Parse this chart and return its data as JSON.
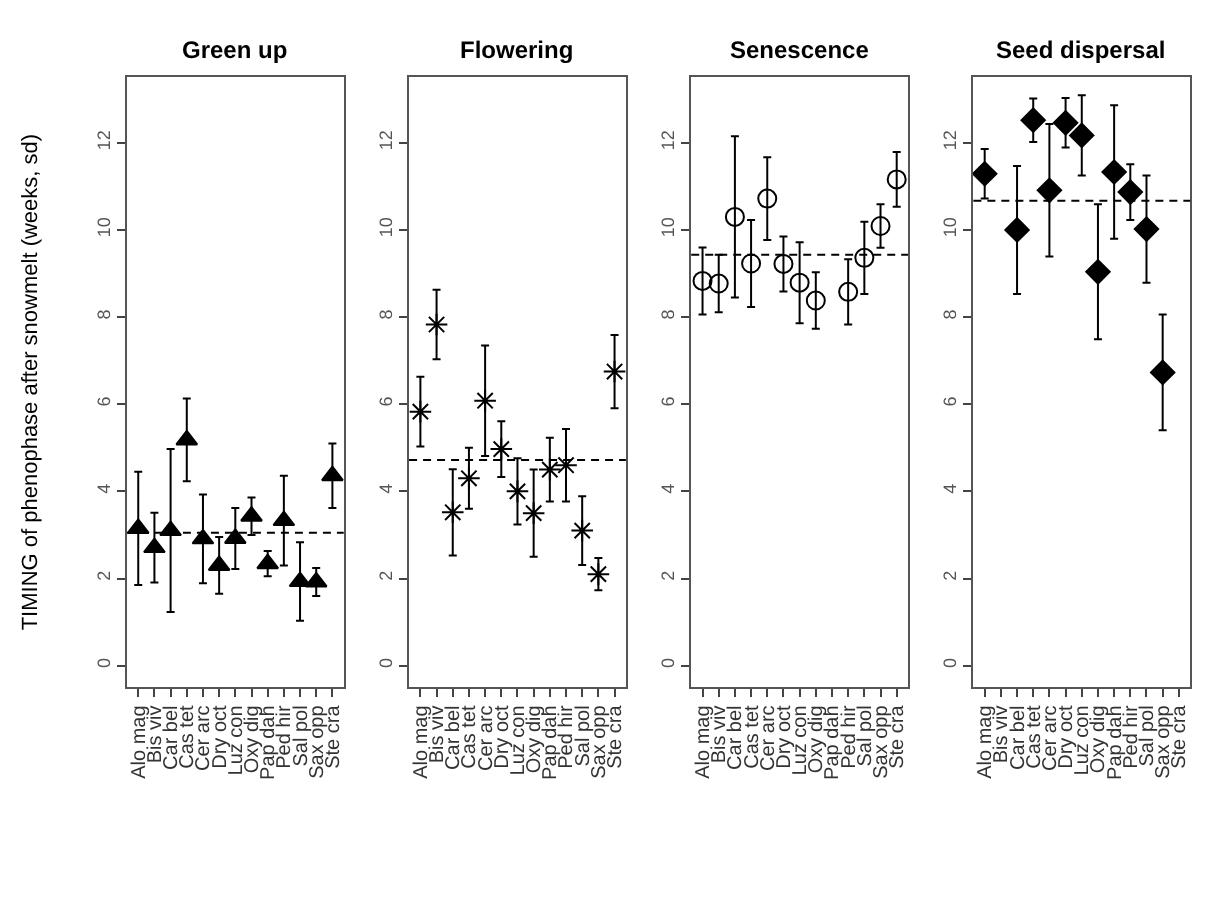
{
  "chart_data": [
    {
      "type": "scatter",
      "title": "Green up",
      "ylabel": "TIMING of phenophase after snowmelt (weeks, sd)",
      "categories": [
        "Alo mag",
        "Bis viv",
        "Car bel",
        "Cas tet",
        "Cer arc",
        "Dry oct",
        "Luz con",
        "Oxy dig",
        "Pap dah",
        "Ped hir",
        "Sal pol",
        "Sax opp",
        "Ste cra"
      ],
      "ylim": [
        -0.5,
        13.5
      ],
      "yticks": [
        0,
        2,
        4,
        6,
        8,
        10,
        12
      ],
      "marker": "triangle",
      "series": [
        {
          "color": "#000000",
          "values": [
            3.15,
            2.71,
            3.1,
            5.18,
            2.91,
            2.3,
            2.92,
            3.43,
            2.34,
            3.33,
            1.93,
            1.92,
            4.36
          ],
          "errors": [
            1.3,
            0.8,
            1.87,
            0.95,
            1.02,
            0.65,
            0.7,
            0.43,
            0.29,
            1.03,
            0.9,
            0.32,
            0.74
          ]
        }
      ],
      "ref_lines": [
        {
          "axis": "y",
          "value": 3.05,
          "line_style": "dashed"
        }
      ]
    },
    {
      "type": "scatter",
      "title": "Flowering",
      "categories": [
        "Alo mag",
        "Bis viv",
        "Car bel",
        "Cas tet",
        "Cer arc",
        "Dry oct",
        "Luz con",
        "Oxy dig",
        "Pap dah",
        "Ped hir",
        "Sal pol",
        "Sax opp",
        "Ste cra"
      ],
      "ylim": [
        -0.5,
        13.5
      ],
      "yticks": [
        0,
        2,
        4,
        6,
        8,
        10,
        12
      ],
      "marker": "cross",
      "series": [
        {
          "color": "#000000",
          "values": [
            5.83,
            7.83,
            3.52,
            4.3,
            6.08,
            4.97,
            4.0,
            3.5,
            4.5,
            4.6,
            3.1,
            2.1,
            6.75
          ],
          "errors": [
            0.8,
            0.8,
            0.99,
            0.7,
            1.27,
            0.64,
            0.76,
            1.0,
            0.73,
            0.83,
            0.79,
            0.37,
            0.84
          ]
        }
      ],
      "ref_lines": [
        {
          "axis": "y",
          "value": 4.72,
          "line_style": "dashed"
        }
      ]
    },
    {
      "type": "scatter",
      "title": "Senescence",
      "categories": [
        "Alo mag",
        "Bis viv",
        "Car bel",
        "Cas tet",
        "Cer arc",
        "Dry oct",
        "Luz con",
        "Oxy dig",
        "Pap dah",
        "Ped hir",
        "Sal pol",
        "Sax opp",
        "Ste cra"
      ],
      "ylim": [
        -0.5,
        13.5
      ],
      "yticks": [
        0,
        2,
        4,
        6,
        8,
        10,
        12
      ],
      "marker": "circle",
      "series": [
        {
          "color": "#000000",
          "values": [
            8.83,
            8.77,
            10.3,
            9.23,
            10.72,
            9.22,
            8.79,
            8.38,
            null,
            8.58,
            9.36,
            10.09,
            11.16
          ],
          "errors": [
            0.77,
            0.66,
            1.85,
            1.0,
            0.95,
            0.63,
            0.93,
            0.65,
            null,
            0.75,
            0.83,
            0.5,
            0.63
          ]
        }
      ],
      "ref_lines": [
        {
          "axis": "y",
          "value": 9.43,
          "line_style": "dashed"
        }
      ]
    },
    {
      "type": "scatter",
      "title": "Seed dispersal",
      "categories": [
        "Alo mag",
        "Bis viv",
        "Car bel",
        "Cas tet",
        "Cer arc",
        "Dry oct",
        "Luz con",
        "Oxy dig",
        "Pap dah",
        "Ped hir",
        "Sal pol",
        "Sax opp",
        "Ste cra"
      ],
      "ylim": [
        -0.5,
        13.5
      ],
      "yticks": [
        0,
        2,
        4,
        6,
        8,
        10,
        12
      ],
      "marker": "diamond",
      "series": [
        {
          "color": "#000000",
          "values": [
            11.29,
            null,
            10.0,
            12.52,
            10.91,
            12.46,
            12.17,
            9.04,
            11.33,
            10.87,
            10.02,
            6.73,
            null
          ],
          "errors": [
            0.57,
            null,
            1.47,
            0.5,
            1.52,
            0.57,
            0.92,
            1.55,
            1.53,
            0.64,
            1.23,
            1.33,
            null
          ]
        }
      ],
      "ref_lines": [
        {
          "axis": "y",
          "value": 10.67,
          "line_style": "dashed"
        }
      ]
    }
  ]
}
